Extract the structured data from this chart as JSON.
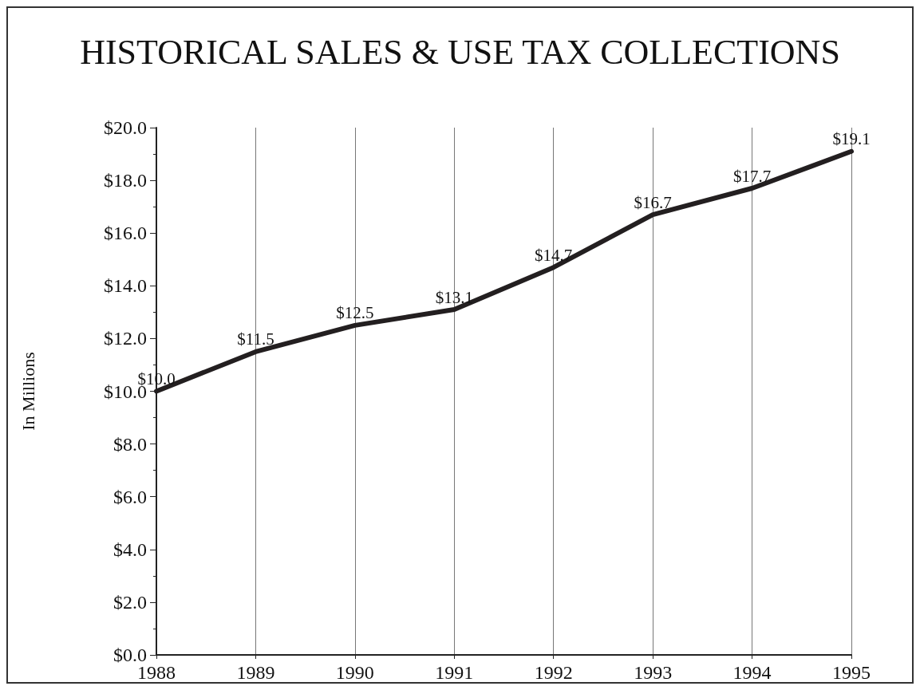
{
  "chart_data": {
    "type": "line",
    "title": "HISTORICAL SALES & USE TAX COLLECTIONS",
    "ylabel": "In Millions",
    "x": [
      1988,
      1989,
      1990,
      1991,
      1992,
      1993,
      1994,
      1995
    ],
    "values": [
      10.0,
      11.5,
      12.5,
      13.1,
      14.7,
      16.7,
      17.7,
      19.1
    ],
    "value_labels": [
      "$10.0",
      "$11.5",
      "$12.5",
      "$13.1",
      "$14.7",
      "$16.7",
      "$17.7",
      "$19.1"
    ],
    "color": "#231f20",
    "xlim": [
      1988,
      1995
    ],
    "xticks": [
      1988,
      1989,
      1990,
      1991,
      1992,
      1993,
      1994,
      1995
    ],
    "ylim": [
      0,
      20
    ],
    "yticks": [
      {
        "value": 0,
        "label": "$0.0"
      },
      {
        "value": 2,
        "label": "$2.0"
      },
      {
        "value": 4,
        "label": "$4.0"
      },
      {
        "value": 6,
        "label": "$6.0"
      },
      {
        "value": 8,
        "label": "$8.0"
      },
      {
        "value": 10,
        "label": "$10.0"
      },
      {
        "value": 12,
        "label": "$12.0"
      },
      {
        "value": 14,
        "label": "$14.0"
      },
      {
        "value": 16,
        "label": "$16.0"
      },
      {
        "value": 18,
        "label": "$18.0"
      },
      {
        "value": 20,
        "label": "$20.0"
      }
    ],
    "grid": "x",
    "marker": "none",
    "line_style": "solid"
  }
}
